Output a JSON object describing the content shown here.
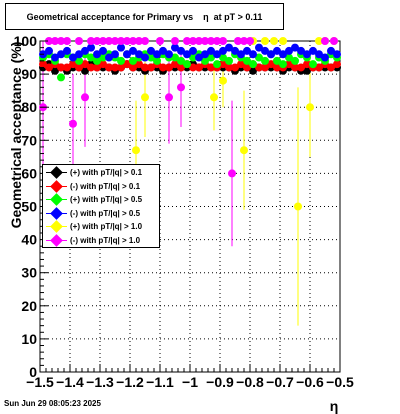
{
  "chart_data": {
    "type": "scatter",
    "title": "Geometrical acceptance for Primary vs    η  at pT > 0.11",
    "xlabel": "η",
    "ylabel": "Geometrical acceptance (%)",
    "xlim": [
      -1.5,
      -0.5
    ],
    "ylim": [
      0,
      100
    ],
    "grid": true,
    "legend_position": "center-left",
    "x_ticks": [
      "−1.5",
      "−1.4",
      "−1.3",
      "−1.2",
      "−1.1",
      "−1",
      "−0.9",
      "−0.8",
      "−0.7",
      "−0.6",
      "−0.5"
    ],
    "y_ticks": [
      "0",
      "10",
      "20",
      "30",
      "40",
      "50",
      "60",
      "70",
      "80",
      "90",
      "100"
    ],
    "series": [
      {
        "name": "(+) with pT/|q| > 0.1",
        "color": "#000000",
        "marker": "circle",
        "x": [
          -1.49,
          -1.47,
          -1.45,
          -1.43,
          -1.41,
          -1.39,
          -1.37,
          -1.35,
          -1.33,
          -1.31,
          -1.29,
          -1.27,
          -1.25,
          -1.23,
          -1.21,
          -1.19,
          -1.17,
          -1.15,
          -1.13,
          -1.11,
          -1.09,
          -1.07,
          -1.05,
          -1.03,
          -1.01,
          -0.99,
          -0.97,
          -0.95,
          -0.93,
          -0.91,
          -0.89,
          -0.87,
          -0.85,
          -0.83,
          -0.81,
          -0.79,
          -0.77,
          -0.75,
          -0.73,
          -0.71,
          -0.69,
          -0.67,
          -0.65,
          -0.63,
          -0.61,
          -0.59,
          -0.57,
          -0.55,
          -0.53,
          -0.51
        ],
        "y": [
          92,
          93,
          91,
          92,
          91,
          92,
          92,
          91,
          93,
          92,
          92,
          92,
          91,
          92,
          93,
          92,
          92,
          91,
          92,
          92,
          91,
          92,
          92,
          92,
          92,
          93,
          92,
          92,
          92,
          92,
          92,
          92,
          91,
          92,
          92,
          91,
          92,
          92,
          92,
          92,
          91,
          92,
          92,
          91,
          91,
          92,
          92,
          92,
          92,
          92
        ]
      },
      {
        "name": "(-) with pT/|q| > 0.1",
        "color": "#ff0000",
        "marker": "circle",
        "x": [
          -1.49,
          -1.47,
          -1.45,
          -1.43,
          -1.41,
          -1.39,
          -1.37,
          -1.35,
          -1.33,
          -1.31,
          -1.29,
          -1.27,
          -1.25,
          -1.23,
          -1.21,
          -1.19,
          -1.17,
          -1.15,
          -1.13,
          -1.11,
          -1.09,
          -1.07,
          -1.05,
          -1.03,
          -1.01,
          -0.99,
          -0.97,
          -0.95,
          -0.93,
          -0.91,
          -0.89,
          -0.87,
          -0.85,
          -0.83,
          -0.81,
          -0.79,
          -0.77,
          -0.75,
          -0.73,
          -0.71,
          -0.69,
          -0.67,
          -0.65,
          -0.63,
          -0.61,
          -0.59,
          -0.57,
          -0.55,
          -0.53,
          -0.51
        ],
        "y": [
          93,
          92,
          93,
          92,
          92,
          93,
          92,
          93,
          92,
          92,
          93,
          92,
          92,
          92,
          93,
          92,
          93,
          92,
          92,
          93,
          92,
          92,
          93,
          92,
          93,
          92,
          92,
          93,
          92,
          92,
          93,
          92,
          92,
          93,
          92,
          93,
          92,
          92,
          93,
          92,
          92,
          93,
          92,
          92,
          93,
          92,
          92,
          93,
          92,
          93
        ]
      },
      {
        "name": "(+) with pT/|q| > 0.5",
        "color": "#00ff00",
        "marker": "circle",
        "x": [
          -1.49,
          -1.47,
          -1.45,
          -1.43,
          -1.41,
          -1.39,
          -1.37,
          -1.35,
          -1.33,
          -1.31,
          -1.29,
          -1.27,
          -1.25,
          -1.23,
          -1.21,
          -1.19,
          -1.17,
          -1.15,
          -1.13,
          -1.11,
          -1.09,
          -1.07,
          -1.05,
          -1.03,
          -1.01,
          -0.99,
          -0.97,
          -0.95,
          -0.93,
          -0.91,
          -0.89,
          -0.87,
          -0.85,
          -0.83,
          -0.81,
          -0.79,
          -0.77,
          -0.75,
          -0.73,
          -0.71,
          -0.69,
          -0.67,
          -0.65,
          -0.63,
          -0.61,
          -0.59,
          -0.57,
          -0.55,
          -0.53,
          -0.51
        ],
        "y": [
          95,
          96,
          94,
          89,
          96,
          95,
          94,
          96,
          95,
          94,
          95,
          96,
          95,
          94,
          96,
          94,
          95,
          96,
          95,
          94,
          96,
          95,
          95,
          94,
          93,
          95,
          96,
          94,
          95,
          93,
          95,
          94,
          96,
          95,
          94,
          93,
          95,
          94,
          96,
          94,
          93,
          95,
          94,
          96,
          95,
          93,
          95,
          94,
          96,
          95
        ]
      },
      {
        "name": "(-) with pT/|q| > 0.5",
        "color": "#0000ff",
        "marker": "circle",
        "x": [
          -1.49,
          -1.47,
          -1.45,
          -1.43,
          -1.41,
          -1.39,
          -1.37,
          -1.35,
          -1.33,
          -1.31,
          -1.29,
          -1.27,
          -1.25,
          -1.23,
          -1.21,
          -1.19,
          -1.17,
          -1.15,
          -1.13,
          -1.11,
          -1.09,
          -1.07,
          -1.05,
          -1.03,
          -1.01,
          -0.99,
          -0.97,
          -0.95,
          -0.93,
          -0.91,
          -0.89,
          -0.87,
          -0.85,
          -0.83,
          -0.81,
          -0.79,
          -0.77,
          -0.75,
          -0.73,
          -0.71,
          -0.69,
          -0.67,
          -0.65,
          -0.63,
          -0.61,
          -0.59,
          -0.57,
          -0.55,
          -0.53,
          -0.51
        ],
        "y": [
          96,
          97,
          95,
          96,
          97,
          95,
          96,
          97,
          98,
          96,
          97,
          95,
          96,
          98,
          96,
          97,
          96,
          95,
          97,
          96,
          97,
          96,
          98,
          97,
          96,
          97,
          95,
          96,
          97,
          96,
          97,
          98,
          97,
          96,
          97,
          96,
          98,
          97,
          96,
          97,
          96,
          97,
          98,
          97,
          96,
          97,
          96,
          95,
          97,
          96
        ]
      },
      {
        "name": "(+) with pT/|q| > 1.0",
        "color": "#ffff00",
        "marker": "circle",
        "x": [
          -1.18,
          -1.15,
          -0.92,
          -0.89,
          -0.82,
          -0.79,
          -0.75,
          -0.72,
          -0.69,
          -0.64,
          -0.6,
          -0.57,
          -0.55,
          -0.52
        ],
        "y": [
          67,
          83,
          83,
          88,
          67,
          100,
          100,
          100,
          100,
          50,
          80,
          100,
          100,
          100
        ],
        "err": [
          15,
          12,
          10,
          8,
          18,
          3,
          3,
          3,
          3,
          36,
          15,
          3,
          3,
          3
        ]
      },
      {
        "name": "(-) with pT/|q| > 1.0",
        "color": "#ff00ff",
        "marker": "circle",
        "x": [
          -1.49,
          -1.47,
          -1.45,
          -1.43,
          -1.41,
          -1.39,
          -1.37,
          -1.35,
          -1.33,
          -1.31,
          -1.29,
          -1.27,
          -1.25,
          -1.23,
          -1.21,
          -1.19,
          -1.17,
          -1.15,
          -1.1,
          -1.07,
          -1.05,
          -1.03,
          -1.01,
          -0.99,
          -0.97,
          -0.95,
          -0.93,
          -0.91,
          -0.89,
          -0.86,
          -0.84,
          -0.82,
          -0.8,
          -0.55,
          -0.52
        ],
        "y": [
          80,
          100,
          100,
          100,
          100,
          75,
          100,
          83,
          100,
          100,
          100,
          100,
          100,
          100,
          100,
          100,
          100,
          100,
          100,
          83,
          100,
          86,
          100,
          100,
          100,
          100,
          100,
          100,
          100,
          60,
          100,
          100,
          100,
          100,
          100
        ],
        "err": [
          20,
          3,
          3,
          3,
          3,
          15,
          3,
          15,
          3,
          3,
          3,
          3,
          3,
          3,
          3,
          3,
          3,
          3,
          3,
          14,
          3,
          12,
          3,
          3,
          3,
          3,
          3,
          3,
          3,
          22,
          3,
          3,
          3,
          3,
          3
        ]
      }
    ],
    "footer_timestamp": "Sun Jun 29 08:05:23 2025"
  }
}
